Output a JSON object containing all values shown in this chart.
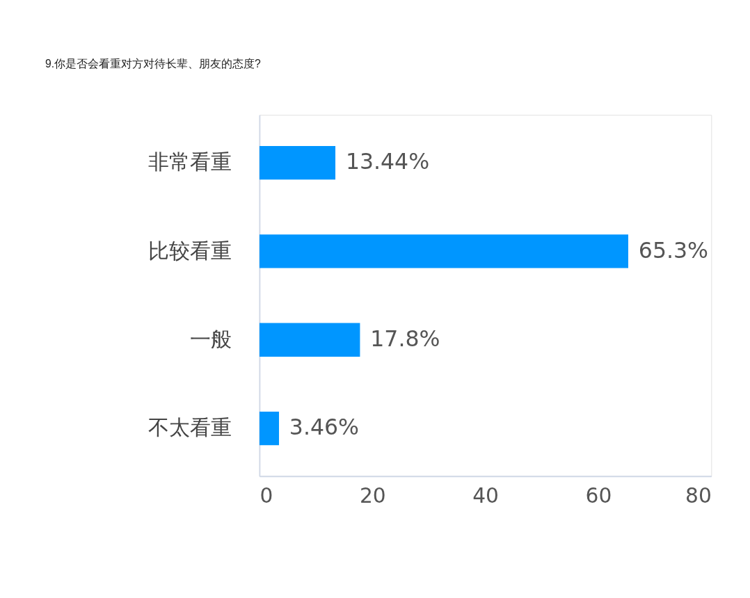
{
  "chart_data": {
    "type": "bar",
    "orientation": "horizontal",
    "title": "9.你是否会看重对方对待长辈、朋友的态度?",
    "categories": [
      "非常看重",
      "比较看重",
      "一般",
      "不太看重"
    ],
    "values": [
      13.44,
      65.3,
      17.8,
      3.46
    ],
    "value_labels": [
      "13.44%",
      "65.3%",
      "17.8%",
      "3.46%"
    ],
    "color": "#0096ff",
    "xlim": [
      0,
      80
    ],
    "xticks": [
      0,
      20,
      40,
      60,
      80
    ],
    "grid": false
  }
}
